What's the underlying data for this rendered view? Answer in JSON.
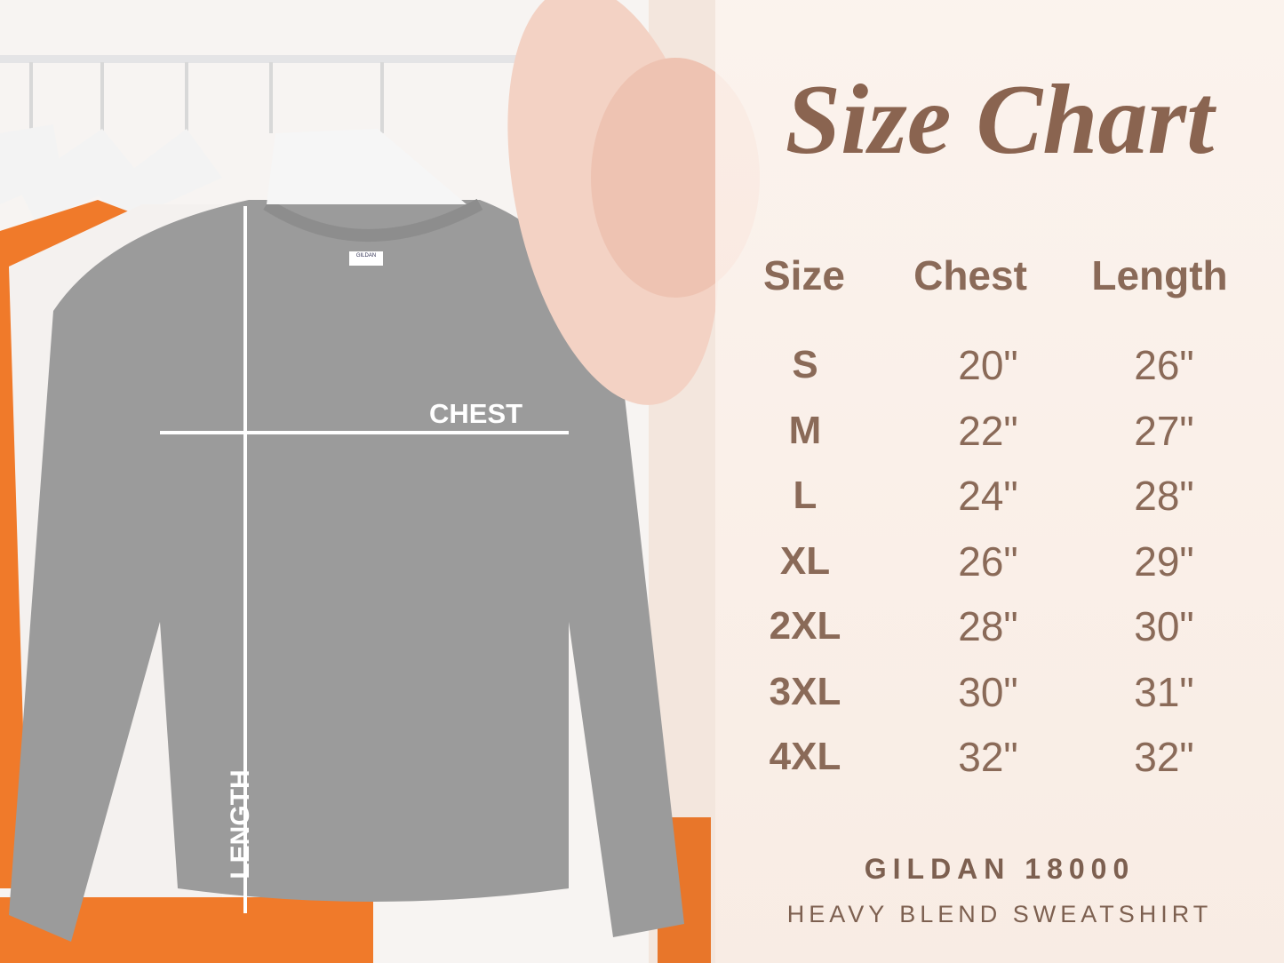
{
  "title": "Size Chart",
  "columns": [
    "Size",
    "Chest",
    "Length"
  ],
  "rows": [
    {
      "size": "S",
      "chest": "20\"",
      "length": "26\""
    },
    {
      "size": "M",
      "chest": "22\"",
      "length": "27\""
    },
    {
      "size": "L",
      "chest": "24\"",
      "length": "28\""
    },
    {
      "size": "XL",
      "chest": "26\"",
      "length": "29\""
    },
    {
      "size": "2XL",
      "chest": "28\"",
      "length": "30\""
    },
    {
      "size": "3XL",
      "chest": "30\"",
      "length": "31\""
    },
    {
      "size": "4XL",
      "chest": "32\"",
      "length": "32\""
    }
  ],
  "brand": "GILDAN 18000",
  "product": "HEAVY BLEND SWEATSHIRT",
  "photo_labels": {
    "chest": "CHEST",
    "length": "LENGTH",
    "tag": "GILDAN"
  },
  "colors": {
    "text": "#8a6a58",
    "shirt": "#9a9a9a",
    "accent_orange": "#f07a2a",
    "hat": "#f2cfc2"
  }
}
